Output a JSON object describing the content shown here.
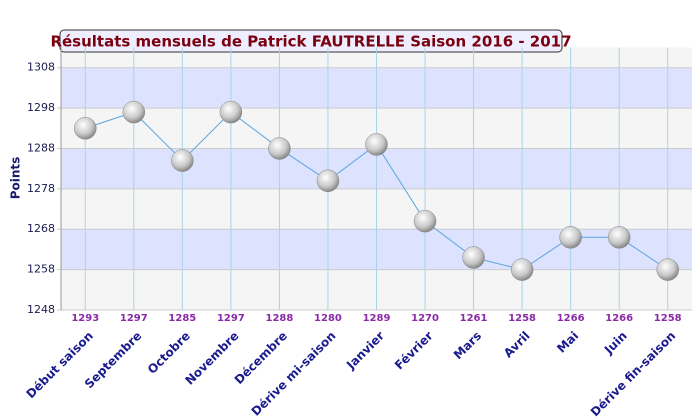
{
  "chart_data": {
    "type": "line",
    "title": "Résultats mensuels de Patrick FAUTRELLE Saison 2016 - 2017",
    "y_label": "Points",
    "categories": [
      "Début saison",
      "Septembre",
      "Octobre",
      "Novembre",
      "Décembre",
      "Dérive mi-saison",
      "Janvier",
      "Février",
      "Mars",
      "Avril",
      "Mai",
      "Juin",
      "Dérive fin-saison"
    ],
    "series": [
      {
        "name": "Points",
        "color": "#5aa5dc",
        "values": [
          1293,
          1297,
          1285,
          1297,
          1288,
          1280,
          1289,
          1270,
          1261,
          1258,
          1266,
          1266,
          1258
        ]
      }
    ],
    "ylim": [
      1248,
      1313
    ],
    "yticks": [
      1248,
      1258,
      1268,
      1278,
      1288,
      1298,
      1308
    ],
    "grid": true
  }
}
